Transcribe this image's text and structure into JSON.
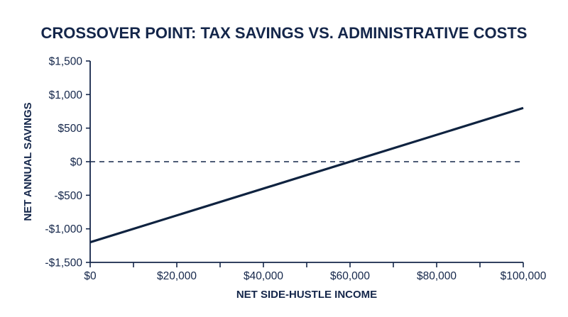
{
  "chart_data": {
    "type": "line",
    "title": "CROSSOVER POINT: TAX SAVINGS VS. ADMINISTRATIVE COSTS",
    "xlabel": "NET SIDE-HUSTLE INCOME",
    "ylabel": "NET ANNUAL SAVINGS",
    "xlim": [
      0,
      100000
    ],
    "ylim": [
      -1500,
      1500
    ],
    "x_ticks": [
      0,
      20000,
      40000,
      60000,
      80000,
      100000
    ],
    "x_tick_labels": [
      "$0",
      "$20,000",
      "$40,000",
      "$60,000",
      "$80,000",
      "$100,000"
    ],
    "x_minor_ticks": [
      10000,
      30000,
      50000,
      70000,
      90000
    ],
    "y_ticks": [
      1500,
      1000,
      500,
      0,
      -500,
      -1000,
      -1500
    ],
    "y_tick_labels": [
      "$1,500",
      "$1,000",
      "$500",
      "$0",
      "-$500",
      "-$1,000",
      "-$1,500"
    ],
    "series": [
      {
        "x": [
          0,
          100000
        ],
        "y": [
          -1200,
          800
        ]
      }
    ],
    "reference_lines": [
      {
        "y": 0,
        "style": "dashed"
      }
    ],
    "grid": false,
    "colors": {
      "line": "#0f2340",
      "axis": "#14264a",
      "text": "#14264a"
    }
  }
}
